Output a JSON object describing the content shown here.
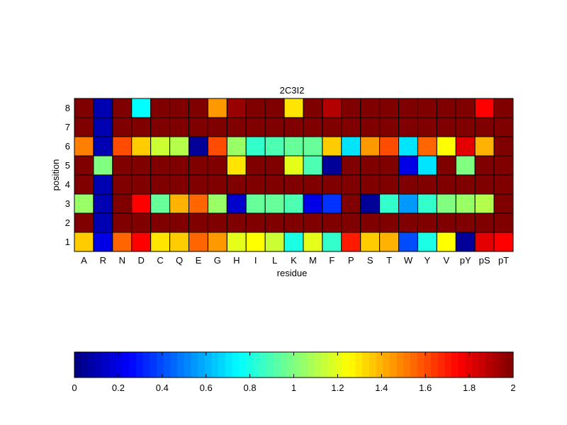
{
  "chart_data": {
    "type": "heatmap",
    "title": "2C3I2",
    "xlabel": "residue",
    "ylabel": "position",
    "x_categories": [
      "A",
      "R",
      "N",
      "D",
      "C",
      "Q",
      "E",
      "G",
      "H",
      "I",
      "L",
      "K",
      "M",
      "F",
      "P",
      "S",
      "T",
      "W",
      "Y",
      "V",
      "pY",
      "pS",
      "pT"
    ],
    "y_categories": [
      "8",
      "7",
      "6",
      "5",
      "4",
      "3",
      "2",
      "1"
    ],
    "values": [
      [
        2.0,
        0.1,
        2.0,
        0.75,
        2.0,
        2.0,
        2.0,
        1.45,
        1.95,
        2.0,
        2.0,
        1.3,
        2.0,
        1.9,
        2.0,
        2.0,
        2.0,
        2.0,
        2.0,
        2.0,
        2.0,
        1.75,
        2.0
      ],
      [
        2.0,
        0.1,
        2.0,
        2.0,
        2.0,
        2.0,
        2.0,
        2.0,
        2.0,
        2.0,
        2.0,
        2.0,
        2.0,
        2.0,
        2.0,
        2.0,
        2.0,
        2.0,
        2.0,
        2.0,
        2.0,
        2.0,
        2.0
      ],
      [
        1.5,
        0.1,
        1.6,
        1.35,
        1.15,
        1.1,
        0.05,
        1.6,
        1.05,
        0.85,
        0.9,
        0.95,
        0.95,
        1.35,
        0.7,
        1.45,
        1.6,
        0.7,
        1.55,
        1.25,
        1.8,
        1.4,
        2.0
      ],
      [
        2.0,
        1.0,
        2.0,
        2.0,
        2.0,
        2.0,
        2.0,
        2.0,
        1.3,
        2.0,
        2.0,
        1.2,
        0.9,
        0.05,
        2.0,
        2.0,
        2.0,
        0.2,
        0.7,
        2.0,
        1.0,
        2.0,
        2.0
      ],
      [
        2.0,
        0.1,
        2.0,
        2.0,
        2.0,
        2.0,
        2.0,
        2.0,
        2.0,
        2.0,
        2.0,
        2.0,
        2.0,
        2.0,
        2.0,
        2.0,
        2.0,
        2.0,
        2.0,
        2.0,
        2.0,
        2.0,
        2.0
      ],
      [
        1.05,
        0.1,
        2.0,
        1.75,
        0.95,
        1.4,
        1.55,
        1.05,
        0.15,
        0.95,
        0.95,
        0.9,
        0.2,
        0.35,
        2.0,
        0.05,
        0.85,
        0.55,
        0.85,
        1.0,
        1.05,
        1.1,
        2.0
      ],
      [
        2.0,
        0.1,
        2.0,
        2.0,
        2.0,
        2.0,
        2.0,
        2.0,
        2.0,
        2.0,
        2.0,
        2.0,
        2.0,
        2.0,
        2.0,
        2.0,
        2.0,
        2.0,
        2.0,
        2.0,
        2.0,
        2.0,
        2.0
      ],
      [
        1.35,
        0.2,
        1.55,
        1.75,
        1.3,
        1.35,
        1.55,
        1.45,
        1.2,
        1.25,
        1.15,
        0.8,
        1.2,
        0.85,
        1.7,
        1.35,
        1.4,
        0.4,
        0.8,
        1.25,
        0.05,
        1.8,
        1.75
      ]
    ],
    "colorbar": {
      "colormap": "jet",
      "range": [
        0,
        2
      ],
      "ticks": [
        "0",
        "0.2",
        "0.4",
        "0.6",
        "0.8",
        "1",
        "1.2",
        "1.4",
        "1.6",
        "1.8",
        "2"
      ]
    }
  }
}
